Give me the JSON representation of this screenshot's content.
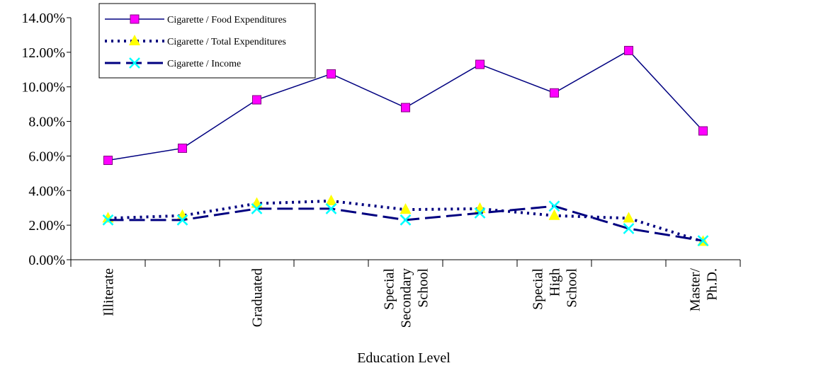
{
  "chart_data": {
    "type": "line",
    "x_label": "Education Level",
    "categories": [
      "Illiterate",
      null,
      "Graduated",
      null,
      "Special Secondary School",
      null,
      "Special High School",
      null,
      "Master/ Ph.D."
    ],
    "series": [
      {
        "name": "Cigarette / Food Expenditures",
        "color": "#000080",
        "marker": "square",
        "marker_color": "#ff00ff",
        "dash": "solid",
        "values": [
          5.75,
          6.45,
          9.25,
          10.75,
          8.8,
          11.3,
          9.65,
          12.1,
          7.45
        ]
      },
      {
        "name": "Cigarette / Total Expenditures",
        "color": "#000080",
        "marker": "triangle",
        "marker_color": "#ffff00",
        "dash": "dotted",
        "values": [
          2.4,
          2.55,
          3.25,
          3.4,
          2.9,
          2.95,
          2.55,
          2.4,
          1.05
        ]
      },
      {
        "name": "Cigarette / Income",
        "color": "#000080",
        "marker": "x",
        "marker_color": "#00ffff",
        "dash": "dashed",
        "values": [
          2.3,
          2.3,
          2.95,
          2.95,
          2.3,
          2.7,
          3.1,
          1.8,
          1.1
        ]
      }
    ],
    "ylim": [
      0,
      14
    ],
    "yticks": [
      {
        "value": 0,
        "label": "0.00%"
      },
      {
        "value": 2,
        "label": "2.00%"
      },
      {
        "value": 4,
        "label": "4.00%"
      },
      {
        "value": 6,
        "label": "6.00%"
      },
      {
        "value": 8,
        "label": "8.00%"
      },
      {
        "value": 10,
        "label": "10.00%"
      },
      {
        "value": 12,
        "label": "12.00%"
      },
      {
        "value": 14,
        "label": "14.00%"
      }
    ],
    "legend": "upper left"
  }
}
